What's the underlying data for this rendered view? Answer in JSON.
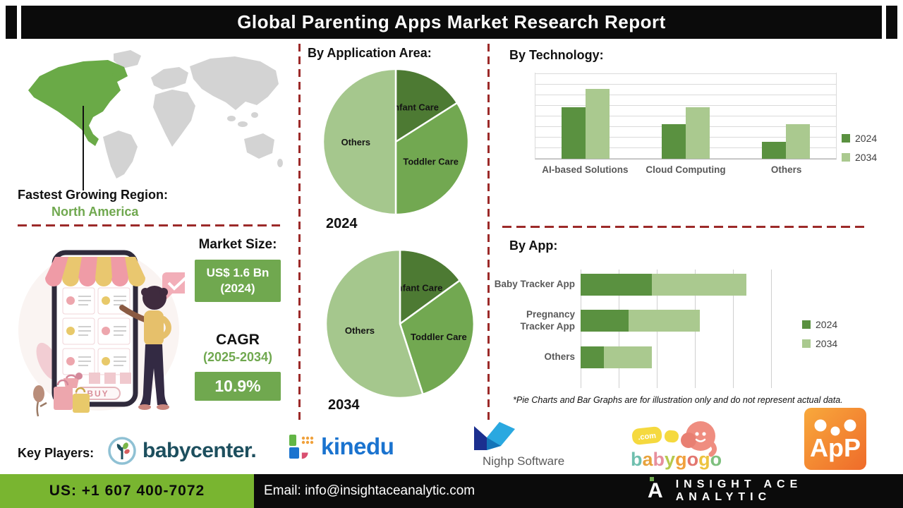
{
  "header": {
    "title": "Global Parenting Apps Market Research Report"
  },
  "region": {
    "label": "Fastest Growing Region:",
    "value": "North America"
  },
  "market": {
    "size_label": "Market Size:",
    "size_value": "US$ 1.6 Bn",
    "size_year": "(2024)",
    "cagr_label": "CAGR",
    "cagr_period": "(2025-2034)",
    "cagr_value": "10.9%"
  },
  "sections": {
    "application": "By Application Area:",
    "technology": "By Technology:",
    "app": "By App:"
  },
  "chart_data": [
    {
      "type": "pie",
      "name": "application-area-2024",
      "title": "By Application Area:",
      "year_label": "2024",
      "slices": [
        {
          "label": "Infant Care",
          "fraction": 0.16,
          "color": "#4d7a33"
        },
        {
          "label": "Toddler Care",
          "fraction": 0.34,
          "color": "#72a851"
        },
        {
          "label": "Others",
          "fraction": 0.5,
          "color": "#a5c78d"
        }
      ]
    },
    {
      "type": "pie",
      "name": "application-area-2034",
      "title": "By Application Area:",
      "year_label": "2034",
      "slices": [
        {
          "label": "Infant Care",
          "fraction": 0.15,
          "color": "#4d7a33"
        },
        {
          "label": "Toddler Care",
          "fraction": 0.3,
          "color": "#72a851"
        },
        {
          "label": "Others",
          "fraction": 0.55,
          "color": "#a5c78d"
        }
      ]
    },
    {
      "type": "bar",
      "name": "by-technology",
      "title": "By Technology:",
      "categories": [
        "AI-based Solutions",
        "Cloud Computing",
        "Others"
      ],
      "series": [
        {
          "name": "2024",
          "color": "#5a9140",
          "values": [
            66,
            44,
            22
          ]
        },
        {
          "name": "2034",
          "color": "#aac98f",
          "values": [
            89,
            66,
            44
          ]
        }
      ],
      "ylim": [
        0,
        110
      ],
      "grid": true,
      "legend_position": "right"
    },
    {
      "type": "bar",
      "orientation": "horizontal",
      "stacked": true,
      "name": "by-app",
      "title": "By App:",
      "categories": [
        "Baby Tracker App",
        "Pregnancy Tracker App",
        "Others"
      ],
      "series": [
        {
          "name": "2024",
          "color": "#5a9140",
          "values": [
            37,
            25,
            12
          ]
        },
        {
          "name": "2034",
          "color": "#aac98f",
          "values": [
            49,
            37,
            25
          ]
        }
      ],
      "xlim": [
        0,
        100
      ],
      "grid": true,
      "legend_position": "right"
    }
  ],
  "footnote": "*Pie Charts and Bar Graphs are for illustration only and do not represent actual data.",
  "key_players": {
    "label": "Key Players:",
    "babycenter": "babycenter.",
    "kinedu": "kinedu",
    "nighp": "Nighp Software",
    "babygogo_bubble": ".com",
    "babygogo_letters": [
      {
        "ch": "b",
        "color": "#6fbfae"
      },
      {
        "ch": "a",
        "color": "#e8a33d"
      },
      {
        "ch": "b",
        "color": "#e78f9d"
      },
      {
        "ch": "y",
        "color": "#b5c94d"
      },
      {
        "ch": "g",
        "color": "#f0a03c"
      },
      {
        "ch": "o",
        "color": "#e2766f"
      },
      {
        "ch": "g",
        "color": "#edc33f"
      },
      {
        "ch": "o",
        "color": "#7ec07e"
      }
    ],
    "app_logo": "ApP",
    "illustration_buy": "BUY"
  },
  "footer": {
    "phone": "US: +1 607 400-7072",
    "email": "Email: info@insightaceanalytic.com",
    "brand": "INSIGHT ACE ANALYTIC",
    "brand_mark": "A"
  },
  "colors": {
    "accent_green_dark": "#5a9140",
    "accent_green_light": "#aac98f",
    "box_green": "#70a84f",
    "footer_green": "#79b530",
    "dashed_red": "#9c2a29",
    "map_highlight": "#6aaa47",
    "map_land": "#d3d3d3"
  }
}
